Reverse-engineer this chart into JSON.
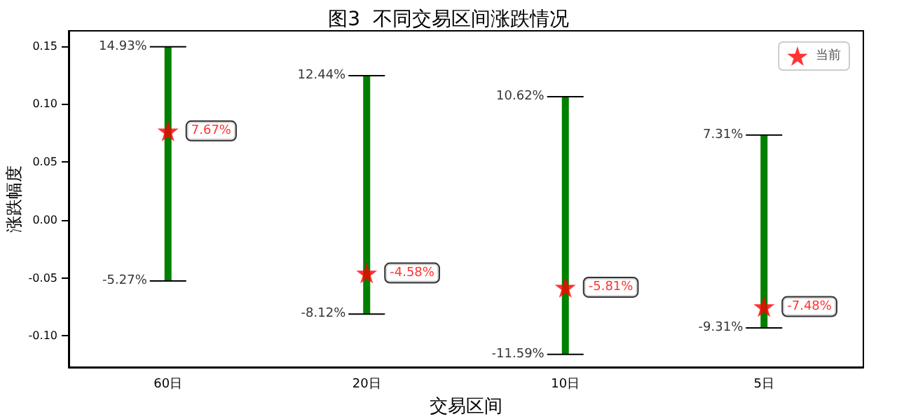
{
  "chart_data": {
    "type": "bar",
    "title": "图3  不同交易区间涨跌情况",
    "xlabel": "交易区间",
    "ylabel": "涨跌幅度",
    "categories": [
      "60日",
      "20日",
      "10日",
      "5日"
    ],
    "series": [
      {
        "color": "#008000",
        "base": [
          -0.0527,
          -0.0812,
          -0.1159,
          -0.0931
        ],
        "values": [
          0.202,
          0.2056,
          0.2221,
          0.1662
        ]
      },
      {
        "type": "scatter",
        "name": "当前",
        "color": "#ff0000",
        "values": [
          0.0767,
          -0.0458,
          -0.0581,
          -0.0748
        ],
        "value_labels": [
          "7.67%",
          "-4.58%",
          "-5.81%",
          "-7.48%"
        ]
      }
    ],
    "marker": "star",
    "legend": "top right",
    "grid": false,
    "ylim": [
      -0.127,
      0.163
    ],
    "yticks": [
      {
        "value": -0.1,
        "label": "-0.10"
      },
      {
        "value": -0.05,
        "label": "-0.05"
      },
      {
        "value": 0,
        "label": "0.00"
      },
      {
        "value": 0.05,
        "label": "0.05"
      },
      {
        "value": 0.1,
        "label": "0.10"
      },
      {
        "value": 0.15,
        "label": "0.15"
      }
    ],
    "annotations": [
      {
        "text": "14.93%",
        "x": "60日",
        "y": 0.1493
      },
      {
        "text": "-5.27%",
        "x": "60日",
        "y": -0.0527
      },
      {
        "text": "12.44%",
        "x": "20日",
        "y": 0.1244
      },
      {
        "text": "-8.12%",
        "x": "20日",
        "y": -0.0812
      },
      {
        "text": "10.62%",
        "x": "10日",
        "y": 0.1062
      },
      {
        "text": "-11.59%",
        "x": "10日",
        "y": -0.1159
      },
      {
        "text": "7.31%",
        "x": "5日",
        "y": 0.0731
      },
      {
        "text": "-9.31%",
        "x": "5日",
        "y": -0.0931
      }
    ]
  }
}
